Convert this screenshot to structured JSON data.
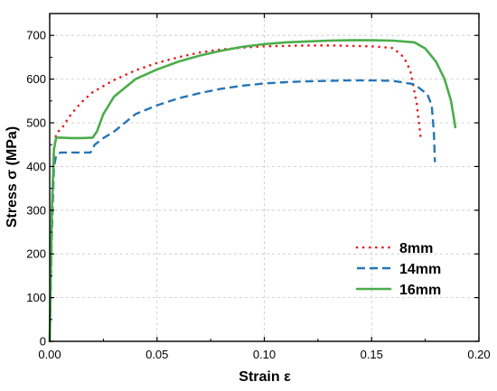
{
  "chart_data": {
    "type": "line",
    "xlabel": "Strain ε",
    "ylabel": "Stress σ (MPa)",
    "xlim": [
      0,
      0.2
    ],
    "ylim": [
      0,
      750
    ],
    "x_ticks": [
      0,
      0.05,
      0.1,
      0.15,
      0.2
    ],
    "x_tick_labels": [
      "0.00",
      "0.05",
      "0.10",
      "0.15",
      "0.20"
    ],
    "y_ticks": [
      0,
      100,
      200,
      300,
      400,
      500,
      600,
      700
    ],
    "y_tick_labels": [
      "0",
      "100",
      "200",
      "300",
      "400",
      "500",
      "600",
      "700"
    ],
    "grid": true,
    "legend_position": "lower-right",
    "series": [
      {
        "name": "8mm",
        "color": "#e8191b",
        "style": "dotted",
        "x": [
          0.0,
          0.001,
          0.002,
          0.003,
          0.006,
          0.01,
          0.015,
          0.02,
          0.03,
          0.04,
          0.05,
          0.06,
          0.07,
          0.08,
          0.09,
          0.1,
          0.11,
          0.12,
          0.13,
          0.14,
          0.15,
          0.16,
          0.165,
          0.168,
          0.171,
          0.173
        ],
        "y": [
          0,
          300,
          440,
          475,
          490,
          520,
          548,
          570,
          598,
          620,
          637,
          650,
          661,
          668,
          672,
          675,
          676,
          677,
          677,
          676,
          675,
          671,
          650,
          620,
          545,
          460
        ]
      },
      {
        "name": "14mm",
        "color": "#2775b6",
        "style": "dashed",
        "x": [
          0.0,
          0.001,
          0.002,
          0.003,
          0.005,
          0.01,
          0.015,
          0.019,
          0.021,
          0.025,
          0.03,
          0.035,
          0.04,
          0.05,
          0.06,
          0.07,
          0.08,
          0.09,
          0.1,
          0.11,
          0.12,
          0.13,
          0.14,
          0.15,
          0.16,
          0.17,
          0.176,
          0.178,
          0.179,
          0.1795
        ],
        "y": [
          0,
          250,
          400,
          425,
          432,
          432,
          432,
          432,
          450,
          465,
          480,
          500,
          520,
          540,
          556,
          568,
          578,
          585,
          590,
          593,
          595,
          596,
          597,
          597,
          596,
          588,
          565,
          540,
          480,
          410
        ]
      },
      {
        "name": "16mm",
        "color": "#4aad4a",
        "style": "solid",
        "x": [
          0.0,
          0.001,
          0.002,
          0.003,
          0.005,
          0.01,
          0.015,
          0.02,
          0.022,
          0.025,
          0.03,
          0.04,
          0.05,
          0.06,
          0.07,
          0.08,
          0.09,
          0.1,
          0.11,
          0.12,
          0.13,
          0.14,
          0.15,
          0.16,
          0.17,
          0.175,
          0.18,
          0.184,
          0.187,
          0.189
        ],
        "y": [
          0,
          300,
          440,
          466,
          466,
          465,
          465,
          466,
          480,
          520,
          560,
          600,
          622,
          640,
          654,
          665,
          674,
          680,
          684,
          686,
          688,
          689,
          689,
          688,
          684,
          670,
          640,
          600,
          550,
          490
        ]
      }
    ]
  }
}
